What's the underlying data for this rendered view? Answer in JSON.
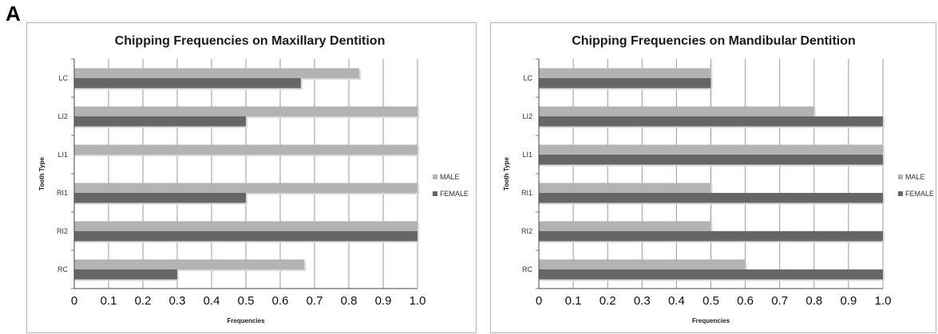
{
  "figure": {
    "panel_label": "A"
  },
  "colors": {
    "male": "#b3b3b3",
    "female": "#666666",
    "grid": "#9a9a9a",
    "border": "#b5b5b5"
  },
  "chart_data": [
    {
      "type": "bar",
      "orientation": "horizontal",
      "title": "Chipping Frequencies on Maxillary Dentition",
      "xlabel": "Frequencies",
      "ylabel": "Tooth Type",
      "xlim": [
        0,
        1.0
      ],
      "xticks": [
        "0",
        "0.1",
        "0.2",
        "0.3",
        "0.4",
        "0.5",
        "0.6",
        "0.7",
        "0.8",
        "0.9",
        "1.0"
      ],
      "categories": [
        "LC",
        "LI2",
        "LI1",
        "RI1",
        "RI2",
        "RC"
      ],
      "series": [
        {
          "name": "MALE",
          "values": [
            0.83,
            1.0,
            1.0,
            1.0,
            1.0,
            0.67
          ]
        },
        {
          "name": "FEMALE",
          "values": [
            0.66,
            0.5,
            0,
            0.5,
            1.0,
            0.3
          ]
        }
      ],
      "legend": "right",
      "grid": true
    },
    {
      "type": "bar",
      "orientation": "horizontal",
      "title": "Chipping Frequencies on Mandibular Dentition",
      "xlabel": "Frequencies",
      "ylabel": "Tooth Type",
      "xlim": [
        0,
        1.0
      ],
      "xticks": [
        "0",
        "0.1",
        "0.2",
        "0.3",
        "0.4",
        "0.5",
        "0.6",
        "0.7",
        "0.8",
        "0.9",
        "1.0"
      ],
      "categories": [
        "LC",
        "LI2",
        "LI1",
        "RI1",
        "RI2",
        "RC"
      ],
      "series": [
        {
          "name": "MALE",
          "values": [
            0.5,
            0.8,
            1.0,
            0.5,
            0.5,
            0.6
          ]
        },
        {
          "name": "FEMALE",
          "values": [
            0.5,
            1.0,
            1.0,
            1.0,
            1.0,
            1.0
          ]
        }
      ],
      "legend": "right",
      "grid": true
    }
  ]
}
